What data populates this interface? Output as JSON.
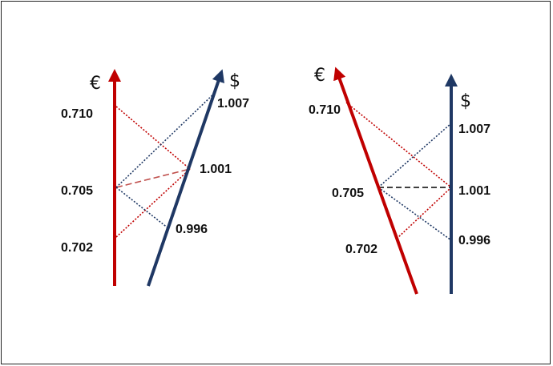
{
  "colors": {
    "euro": "#c00000",
    "dollar": "#1f3864",
    "black": "#000000"
  },
  "left_panel": {
    "euro_symbol": "€",
    "dollar_symbol": "$",
    "euro_values": [
      "0.710",
      "0.705",
      "0.702"
    ],
    "dollar_values": [
      "1.007",
      "1.001",
      "0.996"
    ]
  },
  "right_panel": {
    "euro_symbol": "€",
    "dollar_symbol": "$",
    "euro_values": [
      "0.710",
      "0.705",
      "0.702"
    ],
    "dollar_values": [
      "1.007",
      "1.001",
      "0.996"
    ]
  }
}
